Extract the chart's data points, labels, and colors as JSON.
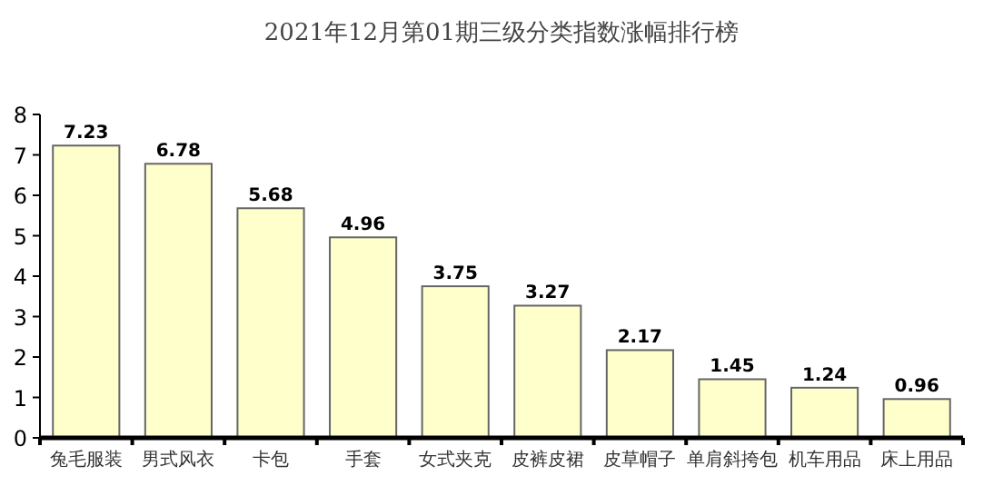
{
  "chart_data": {
    "type": "bar",
    "title": "2021年12月第01期三级分类指数涨幅排行榜",
    "categories": [
      "兔毛服装",
      "男式风衣",
      "卡包",
      "手套",
      "女式夹克",
      "皮裤皮裙",
      "皮草帽子",
      "单肩斜挎包",
      "机车用品",
      "床上用品"
    ],
    "values": [
      7.23,
      6.78,
      5.68,
      4.96,
      3.75,
      3.27,
      2.17,
      1.45,
      1.24,
      0.96
    ],
    "color": "#ffffcc",
    "ylim": [
      0,
      8
    ],
    "yticks": [
      0,
      1,
      2,
      3,
      4,
      5,
      6,
      7,
      8
    ],
    "data_labels": true
  }
}
